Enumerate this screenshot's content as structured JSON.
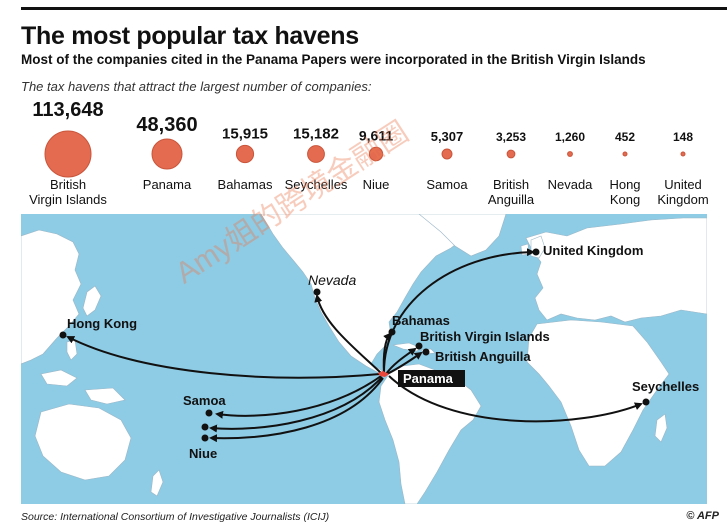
{
  "header": {
    "title": "The most popular tax havens",
    "subtitle": "Most of the companies cited in the Panama Papers were incorporated in the British Virgin Islands",
    "intro": "The tax havens that attract the largest number of companies:"
  },
  "colors": {
    "bubble": "#e46b4f",
    "bubble_stroke": "#c9553b",
    "sea": "#8ecbe4",
    "land": "#ffffff",
    "arrow": "#111111",
    "origin": "#e8463a"
  },
  "chart_data": {
    "type": "bubble",
    "categories": [
      "British Virgin Islands",
      "Panama",
      "Bahamas",
      "Seychelles",
      "Niue",
      "Samoa",
      "British Anguilla",
      "Nevada",
      "Hong Kong",
      "United Kingdom"
    ],
    "value_labels": [
      "113,648",
      "48,360",
      "15,915",
      "15,182",
      "9,611",
      "5,307",
      "3,253",
      "1,260",
      "452",
      "148"
    ],
    "values": [
      113648,
      48360,
      15915,
      15182,
      9611,
      5307,
      3253,
      1260,
      452,
      148
    ]
  },
  "map": {
    "origin": "Panama",
    "destinations": [
      "United Kingdom",
      "Nevada",
      "Hong Kong",
      "Bahamas",
      "British Virgin Islands",
      "British Anguilla",
      "Seychelles",
      "Samoa",
      "Niue"
    ]
  },
  "footer": {
    "source": "Source: International Consortium of Investigative Journalists (ICIJ)",
    "credit": "© AFP"
  },
  "watermark": "Amy姐的跨境金融圈"
}
